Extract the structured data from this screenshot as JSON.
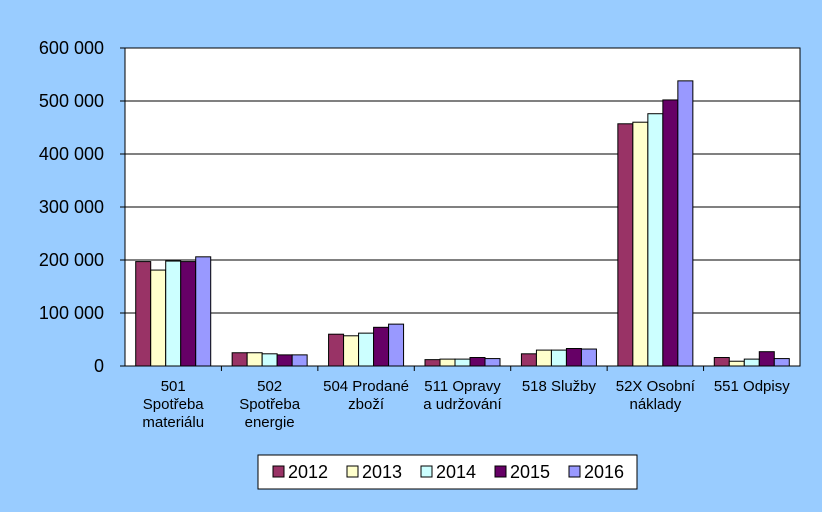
{
  "chart_data": {
    "type": "bar",
    "categories": [
      [
        "501",
        "Spotřeba",
        "materiálu"
      ],
      [
        "502",
        "Spotřeba",
        "energie"
      ],
      [
        "504 Prodané",
        "zboží"
      ],
      [
        "511 Opravy",
        "a udržování"
      ],
      [
        "518 Služby"
      ],
      [
        "52X Osobní",
        "náklady"
      ],
      [
        "551 Odpisy"
      ]
    ],
    "series": [
      {
        "name": "2012",
        "color": "#993366",
        "values": [
          197000,
          25000,
          60000,
          12000,
          23000,
          457000,
          16000
        ]
      },
      {
        "name": "2013",
        "color": "#ffffcc",
        "values": [
          181000,
          25000,
          57000,
          13000,
          30000,
          460000,
          9000
        ]
      },
      {
        "name": "2014",
        "color": "#ccffff",
        "values": [
          198000,
          23000,
          62000,
          13000,
          30000,
          476000,
          13000
        ]
      },
      {
        "name": "2015",
        "color": "#660066",
        "values": [
          197000,
          21000,
          73000,
          16000,
          33000,
          502000,
          27000
        ]
      },
      {
        "name": "2016",
        "color": "#9999ff",
        "values": [
          206000,
          21000,
          79000,
          14000,
          32000,
          538000,
          14000
        ]
      }
    ],
    "ylim": [
      0,
      600000
    ],
    "yticks": [
      0,
      100000,
      200000,
      300000,
      400000,
      500000,
      600000
    ],
    "ytick_labels": [
      "0",
      "100 000",
      "200 000",
      "300 000",
      "400 000",
      "500 000",
      "600 000"
    ],
    "grid": true,
    "legend_position": "bottom-center",
    "plot_background": "#ffffff",
    "page_background": "#99ccff"
  }
}
